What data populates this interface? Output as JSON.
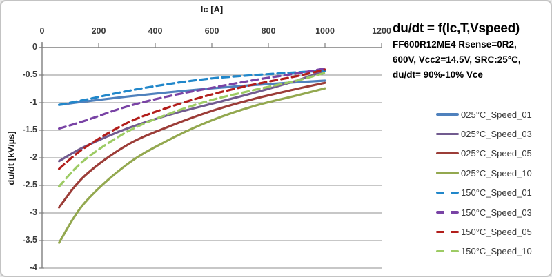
{
  "window": {
    "background": "#ffffff",
    "border_color": "#c3c3c3"
  },
  "title_block": {
    "title": "du/dt = f(Ic,T,Vspeed)",
    "lines": [
      "FF600R12ME4 Rsense=0R2,",
      "600V, Vcc2=14.5V, SRC:25°C,",
      "du/dt= 90%-10% Vce"
    ]
  },
  "chart_data": {
    "type": "line",
    "title": "du/dt = f(Ic,T,Vspeed)",
    "xlabel": "Ic [A]",
    "ylabel": "du/dt [kV/µs]",
    "x_axis_position": "top",
    "xlim": [
      0,
      1200
    ],
    "ylim": [
      -4,
      0
    ],
    "x_ticks": [
      0,
      200,
      400,
      600,
      800,
      1000,
      1200
    ],
    "y_tick_labels": [
      "0",
      "-0.5",
      "-1",
      "-1.5",
      "-2",
      "-2.5",
      "-3",
      "-3.5",
      "-4"
    ],
    "y_tick_values": [
      0,
      -0.5,
      -1,
      -1.5,
      -2,
      -2.5,
      -3,
      -3.5,
      -4
    ],
    "grid": "horizontal-only",
    "grid_color": "#8f8f8f",
    "axis_color": "#7f7f7f",
    "legend_position": "right",
    "x": [
      60,
      150,
      300,
      450,
      600,
      750,
      900,
      1000
    ],
    "series": [
      {
        "name": "025°C_Speed_01",
        "style": "solid",
        "color": "#4F81BD",
        "values": [
          -1.04,
          -0.98,
          -0.89,
          -0.81,
          -0.74,
          -0.68,
          -0.63,
          -0.6
        ]
      },
      {
        "name": "025°C_Speed_03",
        "style": "solid",
        "color": "#715B8F",
        "values": [
          -2.06,
          -1.8,
          -1.47,
          -1.22,
          -1.02,
          -0.82,
          -0.6,
          -0.42
        ]
      },
      {
        "name": "025°C_Speed_05",
        "style": "solid",
        "color": "#9C3D38",
        "values": [
          -2.9,
          -2.33,
          -1.77,
          -1.43,
          -1.15,
          -0.93,
          -0.75,
          -0.64
        ]
      },
      {
        "name": "025°C_Speed_10",
        "style": "solid",
        "color": "#93A84F",
        "values": [
          -3.54,
          -2.82,
          -2.12,
          -1.67,
          -1.32,
          -1.06,
          -0.87,
          -0.74
        ]
      },
      {
        "name": "150°C_Speed_01",
        "style": "dashed",
        "color": "#2187CA",
        "values": [
          -1.04,
          -0.95,
          -0.79,
          -0.66,
          -0.56,
          -0.5,
          -0.45,
          -0.42
        ]
      },
      {
        "name": "150°C_Speed_03",
        "style": "dashed",
        "color": "#7943A5",
        "values": [
          -1.47,
          -1.33,
          -1.07,
          -0.88,
          -0.73,
          -0.59,
          -0.47,
          -0.38
        ]
      },
      {
        "name": "150°C_Speed_05",
        "style": "dashed",
        "color": "#B21E1B",
        "values": [
          -2.2,
          -1.82,
          -1.37,
          -1.08,
          -0.85,
          -0.67,
          -0.52,
          -0.4
        ]
      },
      {
        "name": "150°C_Speed_10",
        "style": "dashed",
        "color": "#9DCB64",
        "values": [
          -2.52,
          -2.04,
          -1.53,
          -1.2,
          -0.95,
          -0.77,
          -0.6,
          -0.46
        ]
      }
    ]
  }
}
